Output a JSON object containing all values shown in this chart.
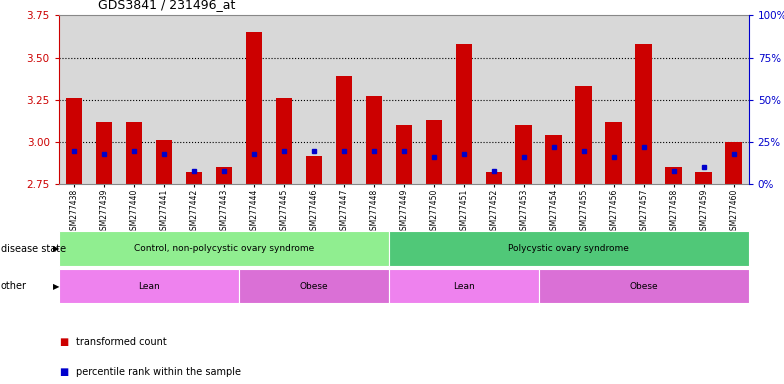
{
  "title": "GDS3841 / 231496_at",
  "samples": [
    "GSM277438",
    "GSM277439",
    "GSM277440",
    "GSM277441",
    "GSM277442",
    "GSM277443",
    "GSM277444",
    "GSM277445",
    "GSM277446",
    "GSM277447",
    "GSM277448",
    "GSM277449",
    "GSM277450",
    "GSM277451",
    "GSM277452",
    "GSM277453",
    "GSM277454",
    "GSM277455",
    "GSM277456",
    "GSM277457",
    "GSM277458",
    "GSM277459",
    "GSM277460"
  ],
  "transformed_count": [
    3.26,
    3.12,
    3.12,
    3.01,
    2.82,
    2.85,
    3.65,
    3.26,
    2.92,
    3.39,
    3.27,
    3.1,
    3.13,
    3.58,
    2.82,
    3.1,
    3.04,
    3.33,
    3.12,
    3.58,
    2.85,
    2.82,
    3.0
  ],
  "percentile_rank": [
    20,
    18,
    20,
    18,
    8,
    8,
    18,
    20,
    20,
    20,
    20,
    20,
    16,
    18,
    8,
    16,
    22,
    20,
    16,
    22,
    8,
    10,
    18
  ],
  "ylim_left": [
    2.75,
    3.75
  ],
  "ylim_right": [
    0,
    100
  ],
  "yticks_left": [
    2.75,
    3.0,
    3.25,
    3.5,
    3.75
  ],
  "yticks_right": [
    0,
    25,
    50,
    75,
    100
  ],
  "ytick_labels_right": [
    "0%",
    "25%",
    "50%",
    "75%",
    "100%"
  ],
  "bar_color": "#cc0000",
  "dot_color": "#0000cc",
  "bar_bottom": 2.75,
  "disease_state_groups": [
    {
      "label": "Control, non-polycystic ovary syndrome",
      "start": 0,
      "end": 11,
      "color": "#90EE90"
    },
    {
      "label": "Polycystic ovary syndrome",
      "start": 11,
      "end": 23,
      "color": "#50C878"
    }
  ],
  "other_groups": [
    {
      "label": "Lean",
      "start": 0,
      "end": 6,
      "color": "#EE82EE"
    },
    {
      "label": "Obese",
      "start": 6,
      "end": 11,
      "color": "#DA70D6"
    },
    {
      "label": "Lean",
      "start": 11,
      "end": 16,
      "color": "#EE82EE"
    },
    {
      "label": "Obese",
      "start": 16,
      "end": 23,
      "color": "#DA70D6"
    }
  ],
  "disease_state_label": "disease state",
  "other_label": "other",
  "legend_items": [
    {
      "label": "transformed count",
      "color": "#cc0000"
    },
    {
      "label": "percentile rank within the sample",
      "color": "#0000cc"
    }
  ],
  "left_axis_color": "#cc0000",
  "right_axis_color": "#0000cc",
  "grid_color": "#000000",
  "background_color": "#ffffff",
  "plot_bg_color": "#d8d8d8",
  "grid_yticks": [
    3.0,
    3.25,
    3.5
  ]
}
